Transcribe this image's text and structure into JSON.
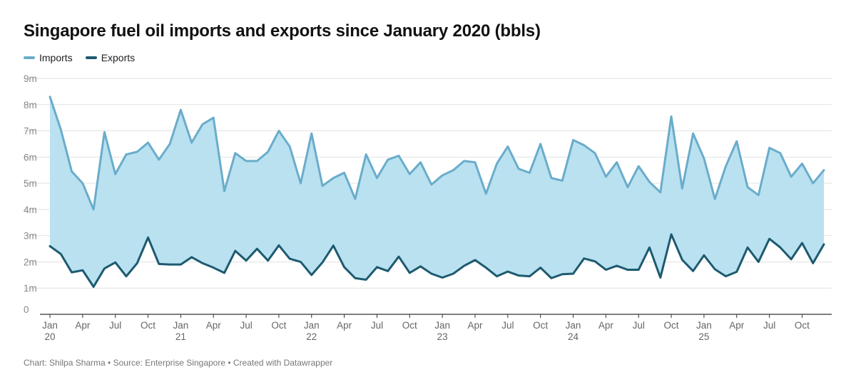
{
  "chart_data": {
    "type": "area",
    "title": "Singapore fuel oil imports and exports since January 2020 (bbls)",
    "xlabel": "",
    "ylabel": "",
    "ylim": [
      0,
      9
    ],
    "y_unit": "m",
    "y_ticks": [
      "0",
      "1m",
      "2m",
      "3m",
      "4m",
      "5m",
      "6m",
      "7m",
      "8m",
      "9m"
    ],
    "x_ticks": [
      {
        "index": 0,
        "label": "Jan",
        "sub": "20"
      },
      {
        "index": 3,
        "label": "Apr",
        "sub": ""
      },
      {
        "index": 6,
        "label": "Jul",
        "sub": ""
      },
      {
        "index": 9,
        "label": "Oct",
        "sub": ""
      },
      {
        "index": 12,
        "label": "Jan",
        "sub": "21"
      },
      {
        "index": 15,
        "label": "Apr",
        "sub": ""
      },
      {
        "index": 18,
        "label": "Jul",
        "sub": ""
      },
      {
        "index": 21,
        "label": "Oct",
        "sub": ""
      },
      {
        "index": 24,
        "label": "Jan",
        "sub": "22"
      },
      {
        "index": 27,
        "label": "Apr",
        "sub": ""
      },
      {
        "index": 30,
        "label": "Jul",
        "sub": ""
      },
      {
        "index": 33,
        "label": "Oct",
        "sub": ""
      },
      {
        "index": 36,
        "label": "Jan",
        "sub": "23"
      },
      {
        "index": 39,
        "label": "Apr",
        "sub": ""
      },
      {
        "index": 42,
        "label": "Jul",
        "sub": ""
      },
      {
        "index": 45,
        "label": "Oct",
        "sub": ""
      },
      {
        "index": 48,
        "label": "Jan",
        "sub": "24"
      },
      {
        "index": 51,
        "label": "Apr",
        "sub": ""
      },
      {
        "index": 54,
        "label": "Jul",
        "sub": ""
      },
      {
        "index": 57,
        "label": "Oct",
        "sub": ""
      },
      {
        "index": 60,
        "label": "Jan",
        "sub": "25"
      },
      {
        "index": 63,
        "label": "Apr",
        "sub": ""
      },
      {
        "index": 66,
        "label": "Jul",
        "sub": ""
      },
      {
        "index": 69,
        "label": "Oct",
        "sub": ""
      }
    ],
    "series": [
      {
        "name": "Imports",
        "color": "#6aaccb",
        "fill": "#b9e1f0",
        "values": [
          8.3,
          7.05,
          5.45,
          5.0,
          4.0,
          6.95,
          5.35,
          6.1,
          6.2,
          6.55,
          5.9,
          6.5,
          7.8,
          6.55,
          7.25,
          7.5,
          4.7,
          6.15,
          5.85,
          5.85,
          6.2,
          7.0,
          6.4,
          5.0,
          6.9,
          4.9,
          5.2,
          5.4,
          4.4,
          6.1,
          5.2,
          5.9,
          6.05,
          5.35,
          5.8,
          4.95,
          5.3,
          5.5,
          5.85,
          5.8,
          4.6,
          5.75,
          6.4,
          5.55,
          5.4,
          6.5,
          5.2,
          5.1,
          6.65,
          6.45,
          6.15,
          5.25,
          5.8,
          4.85,
          5.65,
          5.05,
          4.65,
          7.55,
          4.8,
          6.9,
          5.95,
          4.4,
          5.65,
          6.6,
          4.85,
          4.55,
          6.35,
          6.15,
          5.25,
          5.75,
          5.0,
          5.5
        ]
      },
      {
        "name": "Exports",
        "color": "#1d5a70",
        "values": [
          2.6,
          2.3,
          1.6,
          1.68,
          1.05,
          1.75,
          1.98,
          1.45,
          1.95,
          2.93,
          1.92,
          1.9,
          1.9,
          2.18,
          1.95,
          1.78,
          1.58,
          2.42,
          2.05,
          2.5,
          2.05,
          2.63,
          2.12,
          2.0,
          1.5,
          1.98,
          2.62,
          1.8,
          1.38,
          1.32,
          1.8,
          1.65,
          2.2,
          1.58,
          1.83,
          1.55,
          1.4,
          1.55,
          1.85,
          2.07,
          1.78,
          1.45,
          1.63,
          1.48,
          1.45,
          1.78,
          1.38,
          1.53,
          1.55,
          2.13,
          2.02,
          1.7,
          1.85,
          1.7,
          1.7,
          2.55,
          1.4,
          3.05,
          2.08,
          1.65,
          2.25,
          1.72,
          1.45,
          1.62,
          2.55,
          2.0,
          2.88,
          2.55,
          2.1,
          2.72,
          1.95,
          2.67
        ]
      }
    ]
  },
  "title": "Singapore fuel oil imports and exports since January 2020 (bbls)",
  "legend": [
    {
      "label": "Imports",
      "color": "#6aaccb"
    },
    {
      "label": "Exports",
      "color": "#1d5a70"
    }
  ],
  "footer": "Chart: Shilpa Sharma • Source: Enterprise Singapore • Created with Datawrapper"
}
